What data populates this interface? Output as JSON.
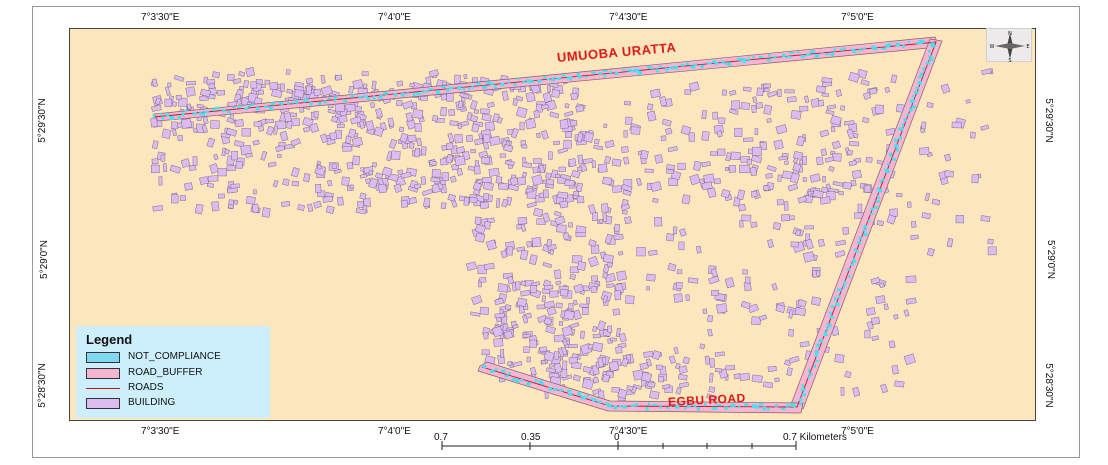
{
  "map": {
    "top_ticks": [
      "7°3'30\"E",
      "7°4'0\"E",
      "7°4'30\"E",
      "7°5'0\"E"
    ],
    "bottom_ticks": [
      "7°3'30\"E",
      "7°4'0\"E",
      "7°4'30\"E",
      "7°5'0\"E"
    ],
    "left_ticks": [
      "5°29'30\"N",
      "5°29'0\"N",
      "5°28'30\"N"
    ],
    "right_ticks": [
      "5°29'30\"N",
      "5°29'0\"N",
      "5°28'30\"N"
    ],
    "road_labels": [
      "UMUOBA URATTA",
      "EGBU ROAD"
    ],
    "compass": {
      "n": "N",
      "s": "S",
      "e": "E",
      "w": "W"
    },
    "scale": {
      "labels": [
        "0.7",
        "0.35",
        "0",
        "0.7 Kilometers"
      ]
    }
  },
  "legend": {
    "title": "Legend",
    "items": [
      {
        "label": "NOT_COMPLIANCE",
        "color": "#7fd8f0",
        "kind": "fill"
      },
      {
        "label": "ROAD_BUFFER",
        "color": "#f6b6d2",
        "kind": "fill"
      },
      {
        "label": "ROADS",
        "color": "#c0141c",
        "kind": "line"
      },
      {
        "label": "BUILDING",
        "color": "#dcbcf0",
        "kind": "fill"
      }
    ]
  },
  "colors": {
    "background": "#fce6bd",
    "building_fill": "#dcbcf0",
    "building_stroke": "#6a5a7a",
    "buffer": "#f6b6d2",
    "noncompliance": "#48dff0",
    "road": "#c0141c",
    "road_label": "#e01818"
  }
}
